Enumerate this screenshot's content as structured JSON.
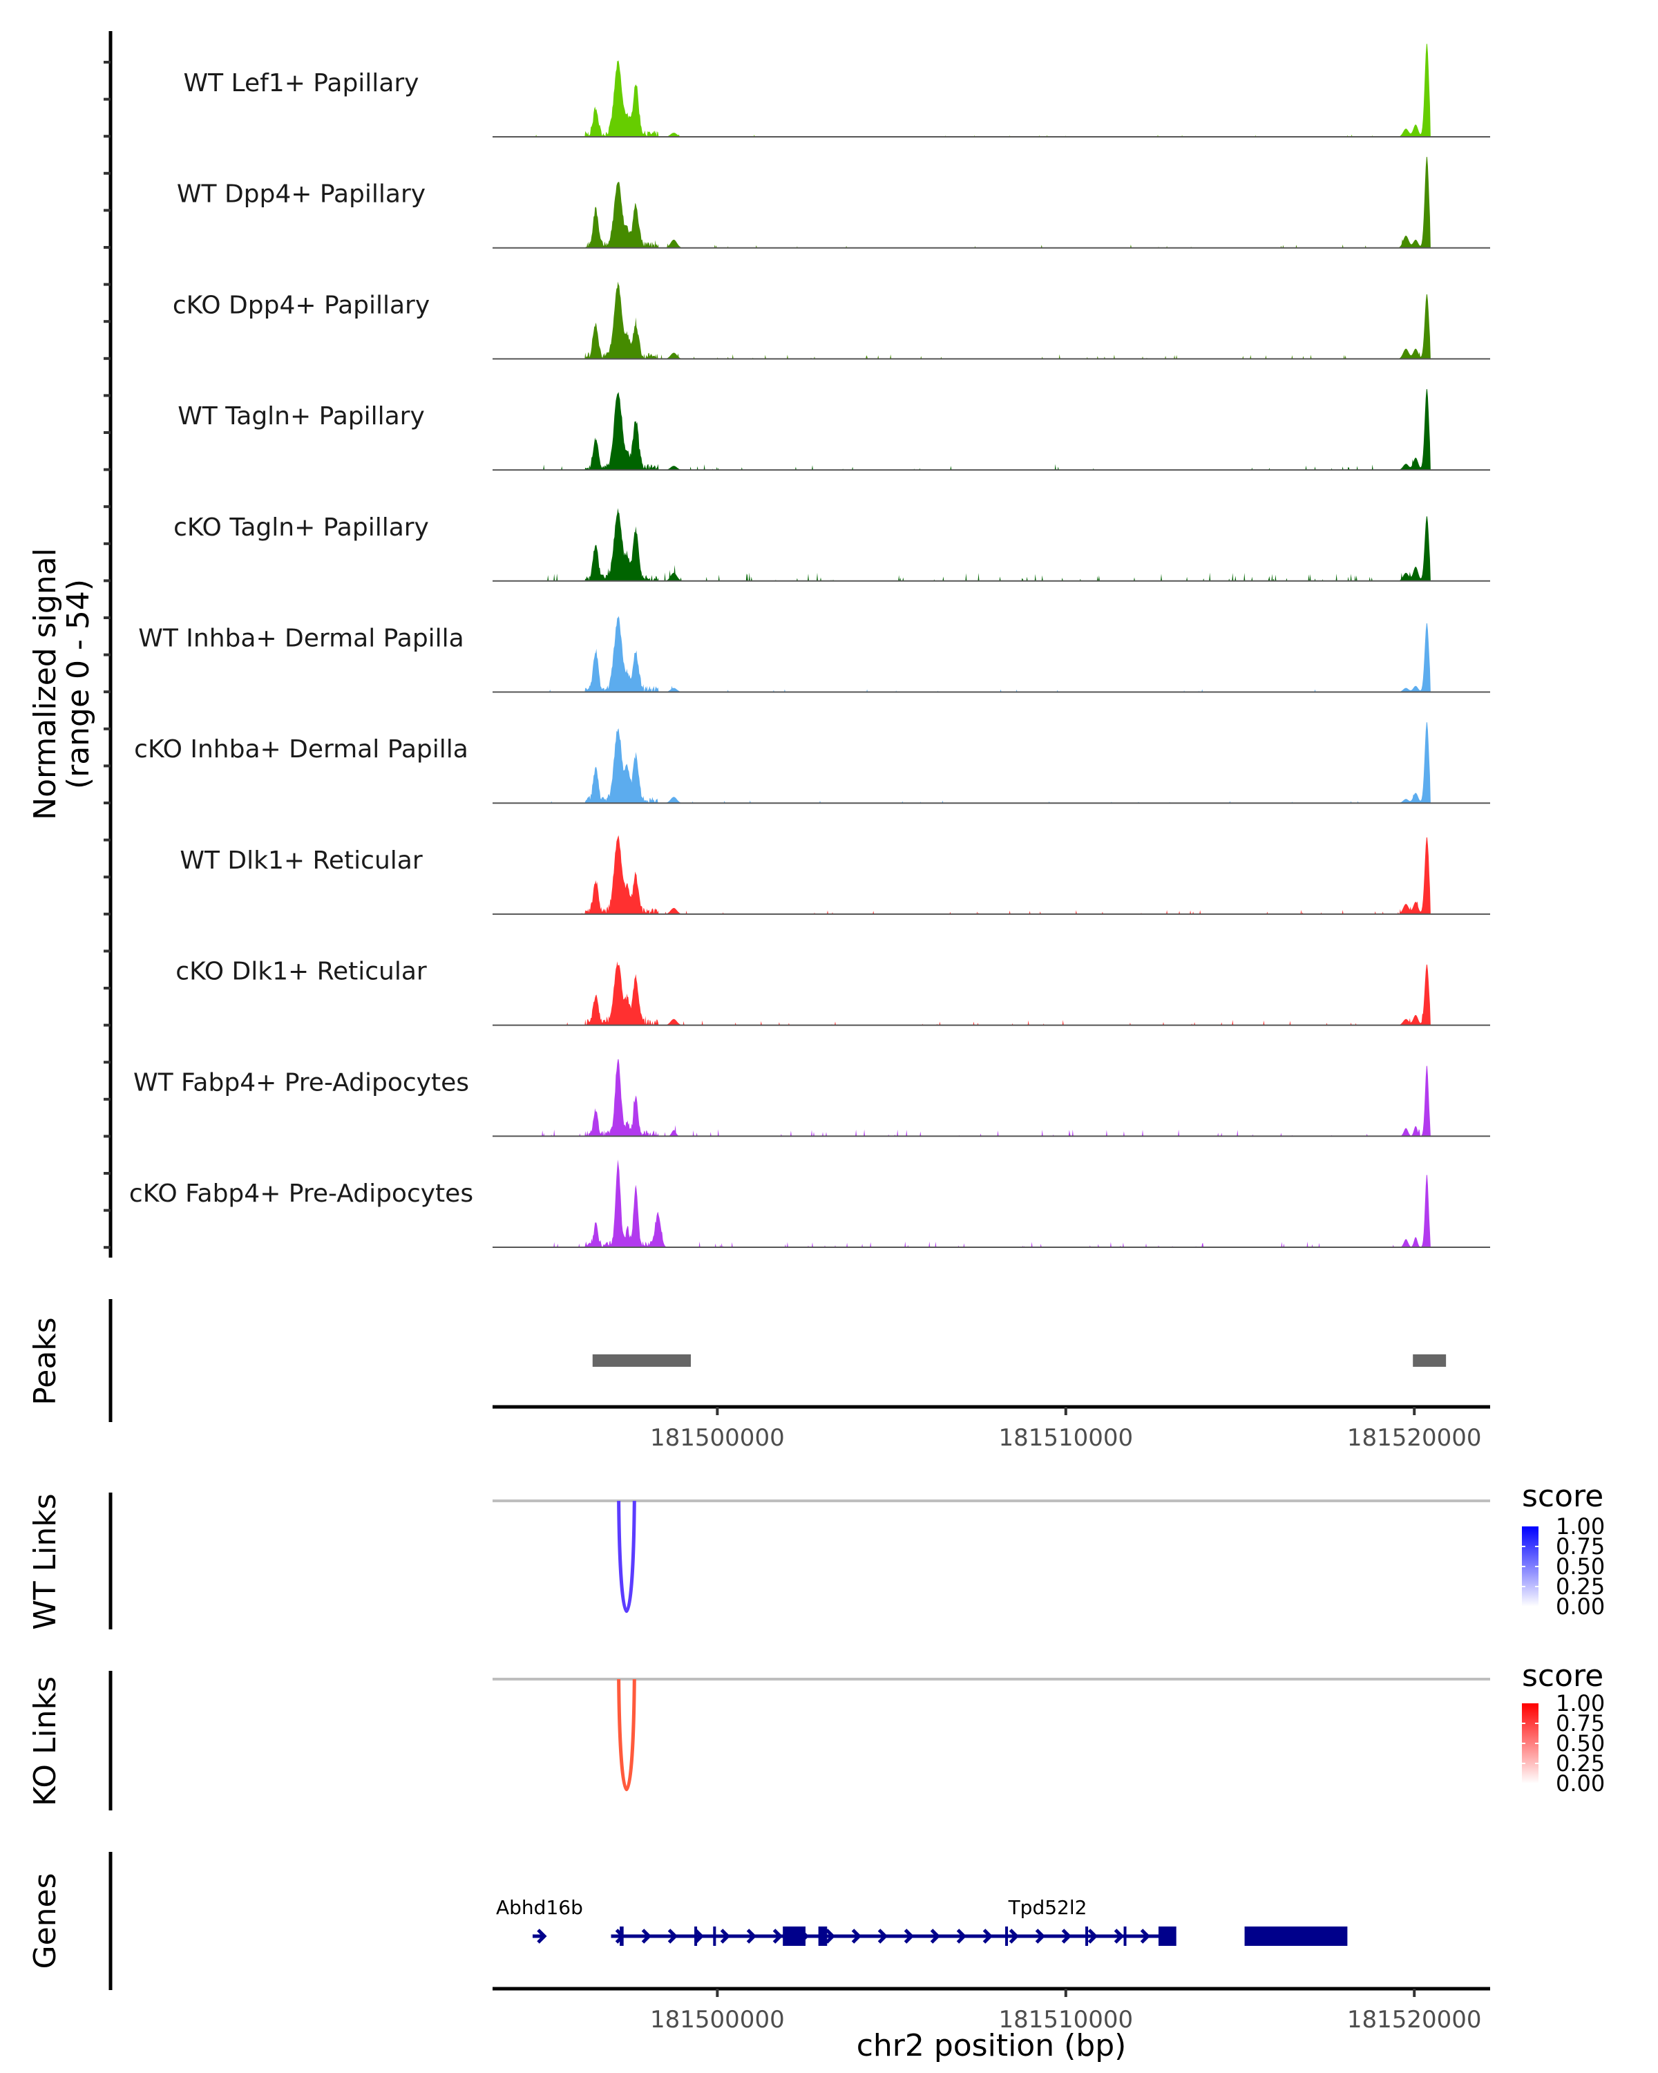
{
  "chart_data": {
    "type": "area",
    "title": "",
    "ylabel": "Normalized signal\n(range 0 - 54)",
    "ylabel_lines": [
      "Normalized signal",
      "(range 0 - 54)"
    ],
    "xlabel": "chr2 position (bp)",
    "xlim": [
      181493550,
      181521740
    ],
    "ylim": [
      0,
      54
    ],
    "x_ticks": [
      181500000,
      181510000,
      181520000
    ],
    "x_tick_labels": [
      "181500000",
      "181510000",
      "181520000"
    ],
    "coverage_tracks": [
      {
        "name": "WT Lef1+ Papillary",
        "color": "#66CD00",
        "peaks": [
          [
            181496510,
            13,
            70
          ],
          [
            181497150,
            35,
            110
          ],
          [
            181497420,
            8,
            60
          ],
          [
            181497660,
            25,
            80
          ],
          [
            181498750,
            2,
            90
          ],
          [
            181519760,
            4,
            80
          ],
          [
            181520040,
            6,
            70
          ],
          [
            181520360,
            46,
            60
          ]
        ],
        "noise": 0.2
      },
      {
        "name": "WT Dpp4+ Papillary",
        "color": "#458B00",
        "peaks": [
          [
            181496510,
            18,
            70
          ],
          [
            181497150,
            31,
            110
          ],
          [
            181497420,
            7,
            60
          ],
          [
            181497660,
            20,
            80
          ],
          [
            181498750,
            4,
            90
          ],
          [
            181519760,
            6,
            80
          ],
          [
            181520040,
            4,
            70
          ],
          [
            181520360,
            45,
            60
          ]
        ],
        "noise": 0.4
      },
      {
        "name": "cKO Dpp4+ Papillary",
        "color": "#458B00",
        "peaks": [
          [
            181496510,
            16,
            70
          ],
          [
            181497150,
            35,
            110
          ],
          [
            181497420,
            9,
            60
          ],
          [
            181497660,
            16,
            80
          ],
          [
            181498750,
            3,
            90
          ],
          [
            181519760,
            5,
            80
          ],
          [
            181520040,
            5,
            70
          ],
          [
            181520360,
            32,
            60
          ]
        ],
        "noise": 0.6
      },
      {
        "name": "WT Tagln+ Papillary",
        "color": "#006400",
        "peaks": [
          [
            181496510,
            14,
            70
          ],
          [
            181497150,
            37,
            110
          ],
          [
            181497420,
            6,
            60
          ],
          [
            181497660,
            23,
            80
          ],
          [
            181498750,
            2,
            90
          ],
          [
            181519760,
            3,
            80
          ],
          [
            181520040,
            6,
            70
          ],
          [
            181520360,
            40,
            60
          ]
        ],
        "noise": 0.8
      },
      {
        "name": "cKO Tagln+ Papillary",
        "color": "#006400",
        "peaks": [
          [
            181496510,
            17,
            70
          ],
          [
            181497150,
            33,
            110
          ],
          [
            181497420,
            10,
            60
          ],
          [
            181497660,
            24,
            80
          ],
          [
            181498750,
            4,
            90
          ],
          [
            181519760,
            4,
            80
          ],
          [
            181520040,
            7,
            70
          ],
          [
            181520360,
            32,
            60
          ]
        ],
        "noise": 1.2
      },
      {
        "name": "WT Inhba+ Dermal Papilla",
        "color": "#5CACEE",
        "peaks": [
          [
            181496510,
            19,
            70
          ],
          [
            181497150,
            35,
            110
          ],
          [
            181497420,
            7,
            60
          ],
          [
            181497660,
            18,
            80
          ],
          [
            181498750,
            2,
            90
          ],
          [
            181519760,
            2,
            80
          ],
          [
            181520040,
            3,
            70
          ],
          [
            181520360,
            34,
            60
          ]
        ],
        "noise": 0.3
      },
      {
        "name": "cKO Inhba+ Dermal Papilla",
        "color": "#5CACEE",
        "peaks": [
          [
            181496510,
            16,
            70
          ],
          [
            181497150,
            35,
            110
          ],
          [
            181497420,
            15,
            60
          ],
          [
            181497660,
            22,
            80
          ],
          [
            181498750,
            3,
            90
          ],
          [
            181519760,
            2,
            80
          ],
          [
            181520040,
            5,
            70
          ],
          [
            181520360,
            40,
            60
          ]
        ],
        "noise": 0.3
      },
      {
        "name": "WT Dlk1+ Reticular",
        "color": "#FF3030",
        "peaks": [
          [
            181496510,
            15,
            70
          ],
          [
            181497150,
            36,
            110
          ],
          [
            181497420,
            11,
            60
          ],
          [
            181497660,
            17,
            80
          ],
          [
            181498750,
            3,
            90
          ],
          [
            181519760,
            5,
            80
          ],
          [
            181520040,
            6,
            70
          ],
          [
            181520360,
            38,
            60
          ]
        ],
        "noise": 0.6
      },
      {
        "name": "cKO Dlk1+ Reticular",
        "color": "#FF3030",
        "peaks": [
          [
            181496510,
            13,
            70
          ],
          [
            181497150,
            29,
            110
          ],
          [
            181497420,
            11,
            60
          ],
          [
            181497660,
            22,
            80
          ],
          [
            181498750,
            3,
            90
          ],
          [
            181519760,
            3,
            80
          ],
          [
            181520040,
            5,
            70
          ],
          [
            181520360,
            30,
            60
          ]
        ],
        "noise": 0.7
      },
      {
        "name": "WT Fabp4+ Pre-Adipocytes",
        "color": "#B23AEE",
        "peaks": [
          [
            181496510,
            12,
            60
          ],
          [
            181497150,
            37,
            80
          ],
          [
            181497420,
            6,
            50
          ],
          [
            181497660,
            19,
            60
          ],
          [
            181498750,
            3,
            60
          ],
          [
            181519760,
            4,
            60
          ],
          [
            181520040,
            5,
            50
          ],
          [
            181520360,
            35,
            50
          ]
        ],
        "noise": 1.0
      },
      {
        "name": "cKO Fabp4+ Pre-Adipocytes",
        "color": "#B23AEE",
        "peaks": [
          [
            181496510,
            10,
            60
          ],
          [
            181497150,
            40,
            70
          ],
          [
            181497420,
            8,
            50
          ],
          [
            181497660,
            30,
            60
          ],
          [
            181498300,
            16,
            80
          ],
          [
            181519760,
            4,
            60
          ],
          [
            181520040,
            5,
            50
          ],
          [
            181520360,
            36,
            50
          ]
        ],
        "noise": 0.8
      }
    ],
    "peaks_track": {
      "label": "Peaks",
      "color": "#666666",
      "regions": [
        [
          181496420,
          181499240
        ],
        [
          181519960,
          181520910
        ]
      ]
    },
    "links_tracks": [
      {
        "label": "WT Links",
        "color": "#5B3CFF",
        "links": [
          {
            "start": 181497170,
            "end": 181497620,
            "score": 0.85
          }
        ],
        "legend": {
          "title": "score",
          "ticks": [
            "1.00",
            "0.75",
            "0.50",
            "0.25",
            "0.00"
          ],
          "low": "#FFFFFF",
          "high": "#0000FF"
        }
      },
      {
        "label": "KO Links",
        "color": "#FF5A3C",
        "links": [
          {
            "start": 181497170,
            "end": 181497620,
            "score": 0.85
          }
        ],
        "legend": {
          "title": "score",
          "ticks": [
            "1.00",
            "0.75",
            "0.50",
            "0.25",
            "0.00"
          ],
          "low": "#FFFFFF",
          "high": "#FF0000"
        }
      }
    ],
    "genes_track": {
      "label": "Genes",
      "color": "#00008B",
      "genes": [
        {
          "name": "Abhd16b",
          "strand": "+",
          "start": 181494700,
          "end": 181494990,
          "exons": []
        },
        {
          "name": "Tpd52l2",
          "strand": "+",
          "start": 181496950,
          "end": 181512900,
          "exons": [
            [
              181497200,
              181497310
            ],
            [
              181499340,
              181499400
            ],
            [
              181499880,
              181499960
            ],
            [
              181501880,
              181502530
            ],
            [
              181502900,
              181503150
            ],
            [
              181508260,
              181508310
            ],
            [
              181510560,
              181510610
            ],
            [
              181511660,
              181511720
            ],
            [
              181512660,
              181513170
            ],
            [
              181515130,
              181518080
            ]
          ]
        }
      ]
    }
  }
}
